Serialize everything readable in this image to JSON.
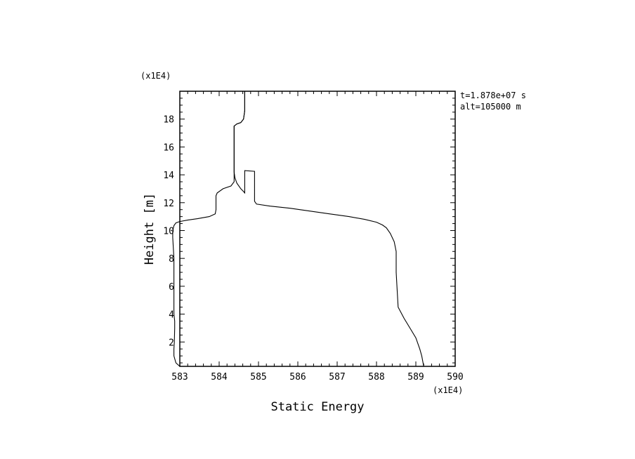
{
  "chart_data": {
    "type": "line",
    "xlabel": "Static Energy",
    "ylabel": "Height [m]",
    "x_multiplier": "(x1E4)",
    "y_multiplier": "(x1E4)",
    "annotations": [
      "t=1.878e+07 s",
      "alt=105000 m"
    ],
    "xlim": [
      583,
      590
    ],
    "ylim": [
      0.25,
      20
    ],
    "xticks": [
      583,
      584,
      585,
      586,
      587,
      588,
      589,
      590
    ],
    "yticks": [
      2,
      4,
      6,
      8,
      10,
      12,
      14,
      16,
      18
    ],
    "grid": false,
    "series": [
      {
        "x": [
          584.65,
          584.65,
          584.62,
          584.55,
          584.45,
          584.38,
          584.38,
          584.38,
          584.38,
          584.4,
          584.45,
          584.55,
          584.62,
          584.65,
          584.65,
          584.9,
          584.9,
          584.9,
          584.95,
          585.3,
          585.8,
          586.3,
          586.8,
          587.3,
          587.7,
          588.0,
          588.15,
          588.25,
          588.35,
          588.45,
          588.5,
          588.5,
          588.52,
          588.55,
          588.7,
          588.85,
          589.0,
          589.1,
          589.15,
          589.2
        ],
        "y": [
          20.0,
          18.6,
          18.0,
          17.75,
          17.65,
          17.5,
          16.0,
          15.0,
          14.2,
          13.8,
          13.4,
          13.0,
          12.8,
          12.7,
          14.3,
          14.25,
          13.0,
          12.1,
          11.9,
          11.75,
          11.6,
          11.4,
          11.2,
          11.0,
          10.8,
          10.6,
          10.4,
          10.2,
          9.8,
          9.2,
          8.5,
          7.0,
          6.0,
          4.5,
          3.7,
          3.0,
          2.3,
          1.5,
          1.0,
          0.25
        ]
      },
      {
        "x": [
          584.65,
          584.65,
          584.62,
          584.55,
          584.45,
          584.38,
          584.38,
          584.38,
          584.38,
          584.3,
          584.1,
          583.95,
          583.92,
          583.92,
          583.9,
          583.75,
          583.45,
          583.2,
          583.0,
          582.9,
          582.85,
          582.82,
          582.82,
          582.85,
          582.85,
          582.85,
          582.85,
          582.85,
          582.87,
          582.87,
          582.86,
          582.85,
          582.85,
          582.9,
          583.0
        ],
        "y": [
          20.0,
          18.6,
          18.0,
          17.75,
          17.65,
          17.5,
          15.0,
          14.0,
          13.5,
          13.2,
          13.0,
          12.7,
          12.5,
          11.5,
          11.2,
          11.0,
          10.85,
          10.75,
          10.65,
          10.55,
          10.35,
          10.0,
          9.5,
          8.0,
          7.0,
          6.0,
          5.0,
          4.0,
          3.5,
          3.0,
          2.0,
          1.5,
          1.0,
          0.5,
          0.25
        ]
      }
    ]
  }
}
